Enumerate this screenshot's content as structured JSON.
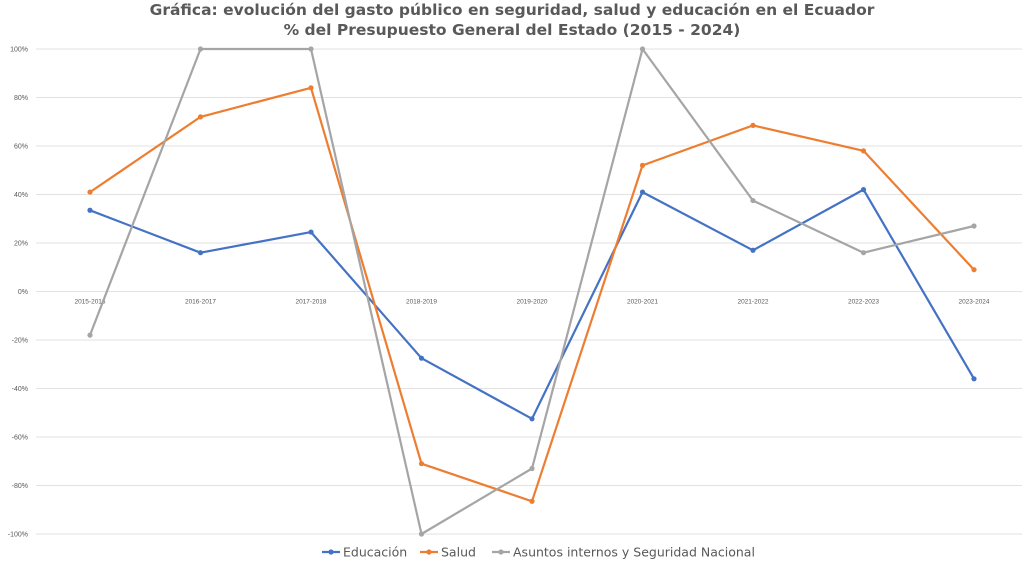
{
  "chart_data": {
    "type": "line",
    "title": "Gráfica: evolución del gasto público en seguridad, salud y educación en el Ecuador",
    "subtitle": "% del Presupuesto General del Estado (2015 - 2024)",
    "categories": [
      "2015-2016",
      "2016-2017",
      "2017-2018",
      "2018-2019",
      "2019-2020",
      "2020-2021",
      "2021-2022",
      "2022-2023",
      "2023-2024"
    ],
    "series": [
      {
        "name": "Educación",
        "color": "#4472C4",
        "values": [
          33.5,
          16,
          24.5,
          -27.5,
          -52.5,
          41,
          17,
          42,
          -36
        ]
      },
      {
        "name": "Salud",
        "color": "#ED7D31",
        "values": [
          41,
          72,
          84,
          -71,
          -86.5,
          52,
          68.5,
          58,
          9
        ]
      },
      {
        "name": "Asuntos internos y Seguridad Nacional",
        "color": "#A5A5A5",
        "values": [
          -18,
          100,
          100,
          -100,
          -73,
          100,
          37.5,
          16,
          27
        ]
      }
    ],
    "ylim": [
      -100,
      100
    ],
    "yticks": [
      100,
      80,
      60,
      40,
      20,
      0,
      -20,
      -40,
      -60,
      -80,
      -100
    ],
    "ytick_labels": [
      "100%",
      "80%",
      "60%",
      "40%",
      "20%",
      "0%",
      "-20%",
      "-40%",
      "-60%",
      "-80%",
      "-100%"
    ],
    "grid": true,
    "legend_position": "bottom",
    "xlabel": "",
    "ylabel": ""
  }
}
